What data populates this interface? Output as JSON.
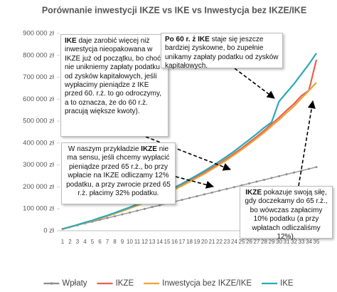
{
  "chart_data": {
    "type": "line",
    "title": "Porównanie inwestycji IKZE vs IKE vs Inwestycja bez IKZE/IKE",
    "categories": [
      "1",
      "2",
      "3",
      "4",
      "5",
      "6",
      "7",
      "8",
      "9",
      "10",
      "11",
      "12",
      "13",
      "14",
      "15",
      "16",
      "17",
      "18",
      "19",
      "20",
      "21",
      "22",
      "23",
      "24",
      "25",
      "26",
      "27",
      "28",
      "29",
      "30",
      "31",
      "32",
      "33",
      "34",
      "35"
    ],
    "series": [
      {
        "name": "Wpłaty",
        "color": "#8c8c8c",
        "markers": true,
        "values": [
          8300,
          16600,
          24900,
          33200,
          41500,
          49800,
          58100,
          66400,
          74700,
          83000,
          91300,
          99600,
          107900,
          116200,
          124500,
          132800,
          141100,
          149400,
          157700,
          166000,
          174300,
          182600,
          190900,
          199200,
          207500,
          215800,
          224100,
          232400,
          240700,
          249000,
          257300,
          265600,
          273900,
          282200,
          290500
        ]
      },
      {
        "name": "IKZE",
        "color": "#e8604c",
        "values": [
          8000,
          17000,
          27000,
          37000,
          46000,
          57000,
          68000,
          80000,
          92000,
          104000,
          117000,
          131000,
          145000,
          160000,
          175000,
          192000,
          209000,
          227000,
          246000,
          265000,
          286000,
          307000,
          329000,
          353000,
          377000,
          403000,
          429000,
          457000,
          487000,
          516000,
          549000,
          579000,
          616000,
          640000,
          780000
        ]
      },
      {
        "name": "Inwestycja bez IKZE/IKE",
        "color": "#e9a53c",
        "values": [
          8000,
          17000,
          26000,
          36000,
          45000,
          56000,
          67000,
          78000,
          90000,
          102000,
          115000,
          128000,
          142000,
          157000,
          172000,
          188000,
          205000,
          223000,
          241000,
          260000,
          280000,
          301000,
          323000,
          346000,
          370000,
          395000,
          421000,
          448000,
          477000,
          506000,
          538000,
          568000,
          604000,
          639000,
          676000
        ]
      },
      {
        "name": "IKE",
        "color": "#2aa9b9",
        "values": [
          8000,
          18000,
          27000,
          38000,
          47000,
          59000,
          70000,
          82000,
          95000,
          107000,
          121000,
          134000,
          149000,
          165000,
          181000,
          197000,
          215000,
          234000,
          253000,
          273000,
          294000,
          316000,
          339000,
          363000,
          389000,
          415000,
          442000,
          470000,
          495000,
          590000,
          630000,
          670000,
          715000,
          760000,
          810000
        ]
      }
    ],
    "ylim": [
      0,
      900000
    ],
    "yticks": [
      {
        "value": 0,
        "label": "0 zł"
      },
      {
        "value": 100000,
        "label": "100 000 zł"
      },
      {
        "value": 200000,
        "label": "200 000 zł"
      },
      {
        "value": 300000,
        "label": "300 000 zł"
      },
      {
        "value": 400000,
        "label": "400 000 zł"
      },
      {
        "value": 500000,
        "label": "500 000 zł"
      },
      {
        "value": 600000,
        "label": "600 000 zł"
      },
      {
        "value": 700000,
        "label": "700 000 zł"
      },
      {
        "value": 800000,
        "label": "800 000 zł"
      },
      {
        "value": 900000,
        "label": "900 000 zł"
      }
    ],
    "legend": "bottom",
    "annotations": [
      {
        "runs": [
          {
            "text": "IKE",
            "bold": true
          },
          {
            "text": " daje zarobić więcej niż inwestycja nieopakowana w IKZE już od początku, bo choć nie unikniemy zapłaty podatku od zysków kapitałowych, jeśli wypłacimy pieniądze z IKE przed 60. r.ż. to go odroczymy, a to oznacza, że do 60 r.ż. pracują większe kwoty)."
          }
        ]
      },
      {
        "runs": [
          {
            "text": "Po 60 r. ż IKE",
            "bold": true
          },
          {
            "text": " staje się jeszcze bardziej zyskowne, bo zupełnie unikamy zapłaty podatku od zysków kapitałowych."
          }
        ]
      },
      {
        "runs": [
          {
            "text": "W naszym przykładzie "
          },
          {
            "text": "IKZE",
            "bold": true
          },
          {
            "text": " nie ma sensu, jeśli chcemy wypłacić pieniądze przed 65 r.ż., bo przy wpłacie na IKZE odliczamy 12% podatku, a przy zwrocie przed 65 r.ż. płacimy 32% podatku."
          }
        ]
      },
      {
        "runs": [
          {
            "text": "IKZE",
            "bold": true
          },
          {
            "text": " pokazuje swoją siłę, gdy doczekamy do 65 r.ż., bo wówczas zapłacimy 10% podatku (a przy wpłatach odliczaliśmy 12%)."
          }
        ]
      }
    ]
  }
}
